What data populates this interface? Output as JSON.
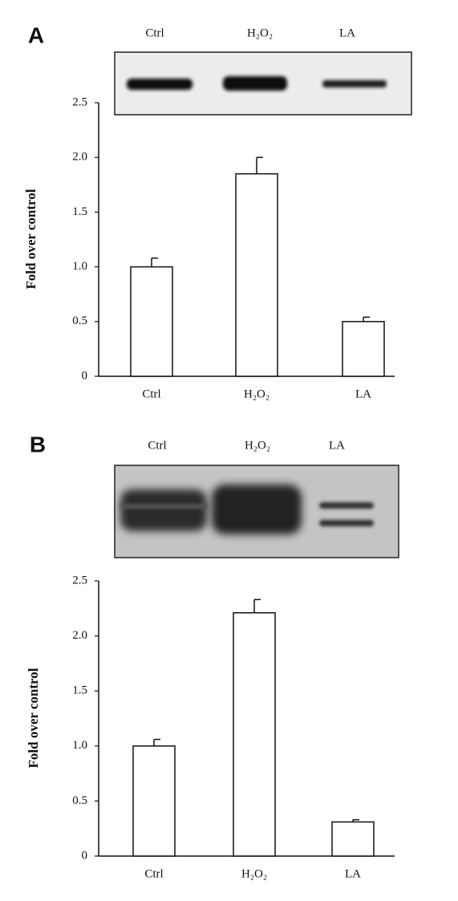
{
  "chart_data": [
    {
      "type": "bar",
      "panel_label": "A",
      "ylabel": "Fold over control",
      "categories": [
        "Ctrl",
        "H₂O₂",
        "LA"
      ],
      "values": [
        1.0,
        1.85,
        0.5
      ],
      "errors": [
        0.08,
        0.15,
        0.04
      ],
      "color": "#ffffff",
      "ylim": [
        0,
        2.5
      ],
      "yticks": [
        0,
        0.5,
        {
          "value": 1,
          "label": "1.0"
        },
        1.5,
        {
          "value": 2,
          "label": "2.0"
        },
        2.5
      ]
    },
    {
      "type": "bar",
      "panel_label": "B",
      "ylabel": "Fold over control",
      "categories": [
        "Ctrl",
        "H₂O₂",
        "LA"
      ],
      "values": [
        1.0,
        2.21,
        0.31
      ],
      "errors": [
        0.06,
        0.12,
        0.02
      ],
      "color": "#ffffff",
      "ylim": [
        0,
        2.5
      ],
      "yticks": [
        0,
        0.5,
        {
          "value": 1,
          "label": "1.0"
        },
        1.5,
        {
          "value": 2,
          "label": "2.0"
        },
        2.5
      ]
    }
  ]
}
